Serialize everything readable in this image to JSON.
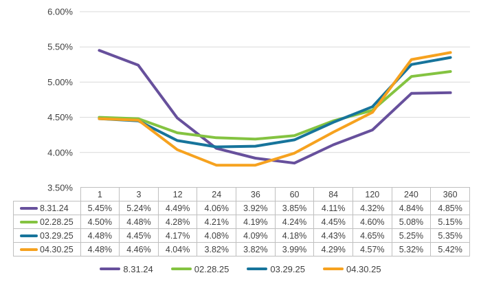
{
  "chart_data": {
    "type": "line",
    "title": "",
    "xlabel": "",
    "ylabel": "",
    "categories": [
      "1",
      "3",
      "12",
      "24",
      "36",
      "60",
      "84",
      "120",
      "240",
      "360"
    ],
    "series": [
      {
        "name": "8.31.24",
        "color": "#67509C",
        "values": [
          5.45,
          5.24,
          4.49,
          4.06,
          3.92,
          3.85,
          4.11,
          4.32,
          4.84,
          4.85
        ]
      },
      {
        "name": "02.28.25",
        "color": "#84C341",
        "values": [
          4.5,
          4.48,
          4.28,
          4.21,
          4.19,
          4.24,
          4.45,
          4.6,
          5.08,
          5.15
        ]
      },
      {
        "name": "03.29.25",
        "color": "#17749B",
        "values": [
          4.48,
          4.45,
          4.17,
          4.08,
          4.09,
          4.18,
          4.43,
          4.65,
          5.25,
          5.35
        ]
      },
      {
        "name": "04.30.25",
        "color": "#F6A21F",
        "values": [
          4.48,
          4.46,
          4.04,
          3.82,
          3.82,
          3.99,
          4.29,
          4.57,
          5.32,
          5.42
        ]
      }
    ],
    "y_ticks": [
      "6.00%",
      "5.50%",
      "5.00%",
      "4.50%",
      "4.00%",
      "3.50%"
    ],
    "ylim": [
      3.5,
      6.0
    ],
    "y_tick_step": 0.5,
    "value_suffix": "%",
    "grid": "horizontal",
    "legend_position": "bottom",
    "data_table_shown": true
  },
  "colors": {
    "background": "#FFFFFF",
    "gridline": "#D9D9D9",
    "table_border": "#BFBFBF",
    "text": "#404040"
  }
}
